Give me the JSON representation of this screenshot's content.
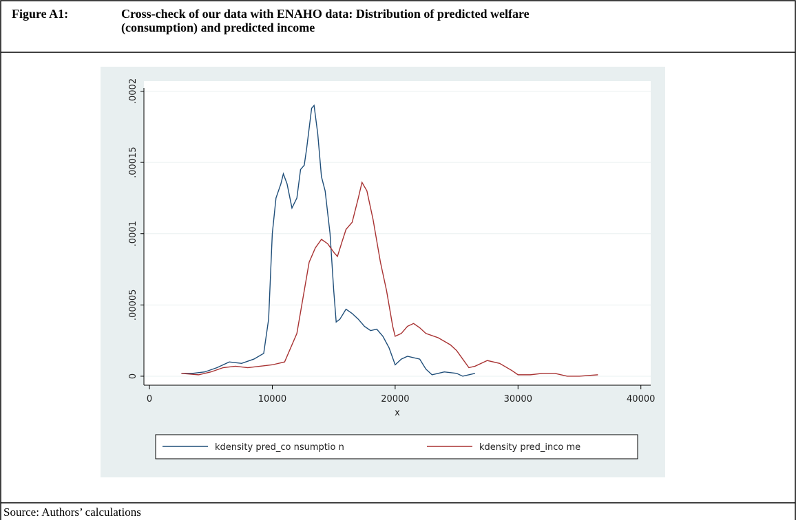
{
  "figure": {
    "label": "Figure A1:",
    "title_lines": [
      "Cross-check of our data with ENAHO data: Distribution of predicted welfare",
      "(consumption) and predicted income"
    ]
  },
  "chart_data": {
    "type": "line",
    "xlabel": "x",
    "xlim": [
      -450,
      40800
    ],
    "ylim": [
      -6.3e-06,
      0.000207
    ],
    "xticks": [
      0,
      10000,
      20000,
      30000,
      40000
    ],
    "yticks": [
      0,
      {
        "value": 5e-05,
        "label": ".00005"
      },
      {
        "value": 0.0001,
        "label": ".0001"
      },
      {
        "value": 0.00015,
        "label": ".00015"
      },
      {
        "value": 0.0002,
        "label": ".0002"
      }
    ],
    "grid": true,
    "series": [
      {
        "name": "kdensity pred_co nsumptio n",
        "color": "#1f4e79",
        "x": [
          2600,
          3500,
          4500,
          5500,
          6500,
          7500,
          8500,
          9300,
          9700,
          10000,
          10300,
          10700,
          10900,
          11200,
          11600,
          12000,
          12300,
          12600,
          12800,
          13200,
          13400,
          13700,
          14000,
          14300,
          14700,
          15000,
          15200,
          15500,
          16000,
          16500,
          17000,
          17500,
          18000,
          18500,
          19000,
          19500,
          20000,
          20500,
          21000,
          22000,
          22500,
          23000,
          24000,
          25000,
          25500,
          26500
        ],
        "values": [
          2e-06,
          2e-06,
          3e-06,
          6e-06,
          1e-05,
          9e-06,
          1.2e-05,
          1.6e-05,
          4e-05,
          0.0001,
          0.000125,
          0.000135,
          0.000142,
          0.000135,
          0.000118,
          0.000125,
          0.000145,
          0.000148,
          0.00016,
          0.000188,
          0.00019,
          0.00017,
          0.00014,
          0.00013,
          0.0001,
          6e-05,
          3.8e-05,
          4e-05,
          4.7e-05,
          4.4e-05,
          4e-05,
          3.5e-05,
          3.2e-05,
          3.3e-05,
          2.8e-05,
          2e-05,
          8e-06,
          1.2e-05,
          1.4e-05,
          1.2e-05,
          5e-06,
          1e-06,
          3e-06,
          2e-06,
          0,
          2e-06
        ]
      },
      {
        "name": "kdensity pred_inco me",
        "color": "#a83232",
        "x": [
          2600,
          4000,
          5000,
          6000,
          7000,
          8000,
          9000,
          10000,
          11000,
          12000,
          12600,
          13000,
          13500,
          14000,
          14500,
          15000,
          15300,
          15700,
          16000,
          16500,
          17000,
          17300,
          17700,
          18200,
          18800,
          19300,
          19800,
          20000,
          20500,
          21000,
          21500,
          22000,
          22500,
          23500,
          24500,
          25000,
          25500,
          26000,
          26500,
          27500,
          28500,
          29500,
          30000,
          31000,
          32000,
          33000,
          34000,
          35000,
          36500
        ],
        "values": [
          2e-06,
          1e-06,
          3e-06,
          6e-06,
          7e-06,
          6e-06,
          7e-06,
          8e-06,
          1e-05,
          3e-05,
          6e-05,
          8e-05,
          9e-05,
          9.6e-05,
          9.3e-05,
          8.7e-05,
          8.4e-05,
          9.5e-05,
          0.000103,
          0.000108,
          0.000125,
          0.000136,
          0.00013,
          0.00011,
          8e-05,
          6e-05,
          3.5e-05,
          2.8e-05,
          3e-05,
          3.5e-05,
          3.7e-05,
          3.4e-05,
          3e-05,
          2.7e-05,
          2.2e-05,
          1.8e-05,
          1.2e-05,
          6e-06,
          7e-06,
          1.1e-05,
          9e-06,
          4e-06,
          1e-06,
          1e-06,
          2e-06,
          2e-06,
          0,
          0,
          1e-06
        ]
      }
    ]
  },
  "source": "Source: Authors’ calculations"
}
